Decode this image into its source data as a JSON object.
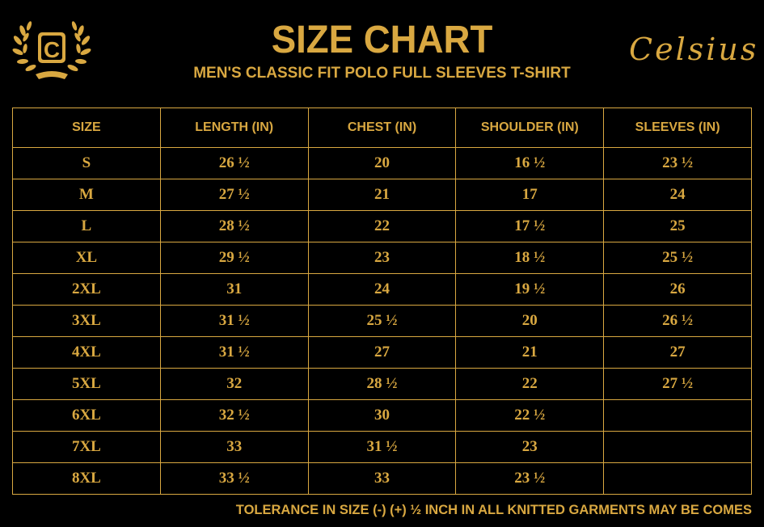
{
  "header": {
    "title": "SIZE CHART",
    "subtitle": "MEN'S CLASSIC FIT POLO FULL SLEEVES T-SHIRT",
    "brand": "Celsius",
    "logo_letter": "C"
  },
  "colors": {
    "accent": "#d9a841",
    "background": "#000000"
  },
  "table": {
    "columns": [
      "SIZE",
      "LENGTH (IN)",
      "CHEST (IN)",
      "SHOULDER (IN)",
      "SLEEVES (IN)"
    ],
    "rows": [
      [
        "S",
        "26 ½",
        "20",
        "16 ½",
        "23 ½"
      ],
      [
        "M",
        "27 ½",
        "21",
        "17",
        "24"
      ],
      [
        "L",
        "28 ½",
        "22",
        "17 ½",
        "25"
      ],
      [
        "XL",
        "29 ½",
        "23",
        "18 ½",
        "25 ½"
      ],
      [
        "2XL",
        "31",
        "24",
        "19 ½",
        "26"
      ],
      [
        "3XL",
        "31 ½",
        "25 ½",
        "20",
        "26 ½"
      ],
      [
        "4XL",
        "31 ½",
        "27",
        "21",
        "27"
      ],
      [
        "5XL",
        "32",
        "28 ½",
        "22",
        "27 ½"
      ],
      [
        "6XL",
        "32 ½",
        "30",
        "22 ½",
        ""
      ],
      [
        "7XL",
        "33",
        "31 ½",
        "23",
        ""
      ],
      [
        "8XL",
        "33 ½",
        "33",
        "23 ½",
        ""
      ]
    ]
  },
  "footer": {
    "note": "TOLERANCE IN SIZE (-) (+) ½ INCH IN ALL KNITTED GARMENTS MAY BE COMES"
  }
}
